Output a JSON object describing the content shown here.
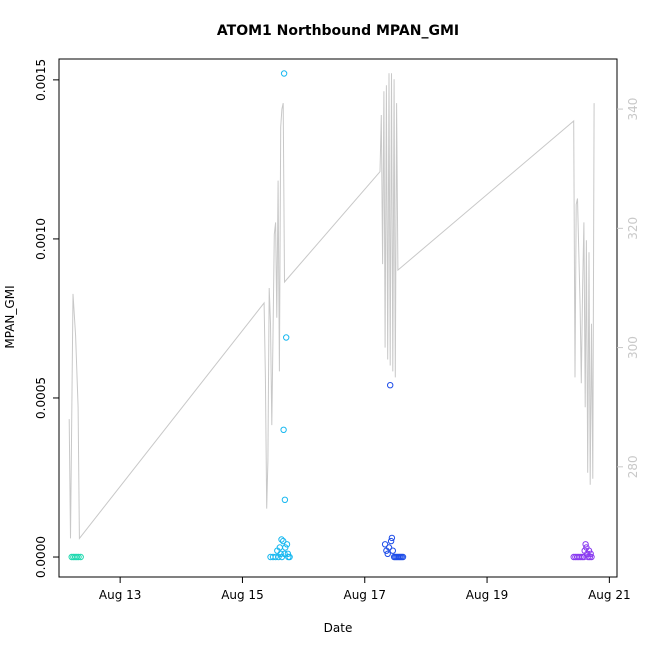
{
  "chart_data": {
    "type": "scatter",
    "title": "ATOM1 Northbound MPAN_GMI",
    "xlabel": "Date",
    "ylabel": "MPAN_GMI",
    "x_ticks": [
      {
        "date": "2023-08-13",
        "label": "Aug 13"
      },
      {
        "date": "2023-08-15",
        "label": "Aug 15"
      },
      {
        "date": "2023-08-17",
        "label": "Aug 17"
      },
      {
        "date": "2023-08-19",
        "label": "Aug 19"
      },
      {
        "date": "2023-08-21",
        "label": "Aug 21"
      }
    ],
    "xlim": [
      "2023-08-12 00:00",
      "2023-08-21 03:00"
    ],
    "y_left_ticks": [
      {
        "value": 0,
        "label": "0.0000"
      },
      {
        "value": 0.0005,
        "label": "0.0005"
      },
      {
        "value": 0.001,
        "label": "0.0010"
      },
      {
        "value": 0.0015,
        "label": "0.0015"
      }
    ],
    "ylim": [
      -6.28e-05,
      0.0015656
    ],
    "y_right_ticks": [
      {
        "value": 280,
        "label": "280"
      },
      {
        "value": 300,
        "label": "300"
      },
      {
        "value": 320,
        "label": "320"
      },
      {
        "value": 340,
        "label": "340"
      }
    ],
    "y_right_lim": [
      261.52,
      348.4
    ],
    "colors": {
      "line": "#c8c8c8",
      "right_axis": "#c8c8c8",
      "axis": "#000000"
    },
    "series": [
      {
        "color": "#20d9b0",
        "points": [
          [
            "2023-08-12 05:00",
            0
          ],
          [
            "2023-08-12 05:40",
            0
          ],
          [
            "2023-08-12 06:20",
            0
          ],
          [
            "2023-08-12 07:00",
            0
          ],
          [
            "2023-08-12 07:40",
            0
          ],
          [
            "2023-08-12 08:30",
            0
          ]
        ]
      },
      {
        "color": "#18b8f0",
        "points": [
          [
            "2023-08-15 11:00",
            0
          ],
          [
            "2023-08-15 12:00",
            0
          ],
          [
            "2023-08-15 13:00",
            0
          ],
          [
            "2023-08-15 13:40",
            2e-05
          ],
          [
            "2023-08-15 14:10",
            0
          ],
          [
            "2023-08-15 14:40",
            3e-05
          ],
          [
            "2023-08-15 15:00",
            1e-05
          ],
          [
            "2023-08-15 15:30",
            0
          ],
          [
            "2023-08-15 16:00",
            5e-05
          ],
          [
            "2023-08-15 16:10",
            0.0004
          ],
          [
            "2023-08-15 16:20",
            0.00152
          ],
          [
            "2023-08-15 16:30",
            1e-05
          ],
          [
            "2023-08-15 16:40",
            0.00018
          ],
          [
            "2023-08-15 16:50",
            3e-05
          ],
          [
            "2023-08-15 17:10",
            0.00069
          ],
          [
            "2023-08-15 17:30",
            4e-05
          ],
          [
            "2023-08-15 18:00",
            0.0
          ],
          [
            "2023-08-15 18:30",
            0
          ],
          [
            "2023-08-15 15:20",
            5.5e-05
          ],
          [
            "2023-08-15 17:50",
            1e-05
          ]
        ]
      },
      {
        "color": "#1e4de8",
        "points": [
          [
            "2023-08-17 08:00",
            4e-05
          ],
          [
            "2023-08-17 08:30",
            2e-05
          ],
          [
            "2023-08-17 09:00",
            1e-05
          ],
          [
            "2023-08-17 09:30",
            3e-05
          ],
          [
            "2023-08-17 10:00",
            0.00054
          ],
          [
            "2023-08-17 10:20",
            5e-05
          ],
          [
            "2023-08-17 10:40",
            6e-05
          ],
          [
            "2023-08-17 11:00",
            2e-05
          ],
          [
            "2023-08-17 11:30",
            0
          ],
          [
            "2023-08-17 12:00",
            0
          ],
          [
            "2023-08-17 12:30",
            0
          ],
          [
            "2023-08-17 13:00",
            0
          ],
          [
            "2023-08-17 13:30",
            0
          ],
          [
            "2023-08-17 14:00",
            0
          ],
          [
            "2023-08-17 14:30",
            0
          ],
          [
            "2023-08-17 15:00",
            0
          ]
        ]
      },
      {
        "color": "#8a3cf0",
        "points": [
          [
            "2023-08-20 10:00",
            0
          ],
          [
            "2023-08-20 10:40",
            0
          ],
          [
            "2023-08-20 11:20",
            0
          ],
          [
            "2023-08-20 12:00",
            0
          ],
          [
            "2023-08-20 12:40",
            0
          ],
          [
            "2023-08-20 13:20",
            0
          ],
          [
            "2023-08-20 14:00",
            0
          ],
          [
            "2023-08-20 14:20",
            2e-05
          ],
          [
            "2023-08-20 14:40",
            4e-05
          ],
          [
            "2023-08-20 15:00",
            3e-05
          ],
          [
            "2023-08-20 15:20",
            1e-05
          ],
          [
            "2023-08-20 15:40",
            0
          ],
          [
            "2023-08-20 16:00",
            2e-05
          ],
          [
            "2023-08-20 16:20",
            0
          ],
          [
            "2023-08-20 16:40",
            1e-05
          ],
          [
            "2023-08-20 17:00",
            0
          ]
        ]
      }
    ],
    "line_series": {
      "axis": "right",
      "points": [
        [
          "2023-08-12 04:00",
          288
        ],
        [
          "2023-08-12 04:30",
          268
        ],
        [
          "2023-08-12 05:30",
          309
        ],
        [
          "2023-08-12 06:30",
          302
        ],
        [
          "2023-08-12 07:30",
          290
        ],
        [
          "2023-08-12 08:00",
          268
        ],
        [
          "2023-08-15 08:30",
          307.5
        ],
        [
          "2023-08-15 09:00",
          295
        ],
        [
          "2023-08-15 09:30",
          273
        ],
        [
          "2023-08-15 10:00",
          281
        ],
        [
          "2023-08-15 10:30",
          310
        ],
        [
          "2023-08-15 11:00",
          304
        ],
        [
          "2023-08-15 11:30",
          287
        ],
        [
          "2023-08-15 12:00",
          302
        ],
        [
          "2023-08-15 12:30",
          319
        ],
        [
          "2023-08-15 13:00",
          321
        ],
        [
          "2023-08-15 13:30",
          305
        ],
        [
          "2023-08-15 14:00",
          328
        ],
        [
          "2023-08-15 14:30",
          296
        ],
        [
          "2023-08-15 15:00",
          337
        ],
        [
          "2023-08-15 15:30",
          340
        ],
        [
          "2023-08-15 16:00",
          341
        ],
        [
          "2023-08-15 16:30",
          311
        ],
        [
          "2023-08-17 06:00",
          329.5
        ],
        [
          "2023-08-17 06:30",
          339
        ],
        [
          "2023-08-17 07:00",
          314
        ],
        [
          "2023-08-17 07:30",
          343
        ],
        [
          "2023-08-17 08:00",
          300
        ],
        [
          "2023-08-17 08:30",
          344
        ],
        [
          "2023-08-17 09:00",
          298
        ],
        [
          "2023-08-17 09:30",
          346
        ],
        [
          "2023-08-17 10:00",
          297
        ],
        [
          "2023-08-17 10:30",
          346
        ],
        [
          "2023-08-17 11:00",
          296
        ],
        [
          "2023-08-17 11:30",
          345
        ],
        [
          "2023-08-17 12:00",
          295
        ],
        [
          "2023-08-17 12:30",
          341
        ],
        [
          "2023-08-17 13:00",
          313
        ],
        [
          "2023-08-20 10:00",
          338
        ],
        [
          "2023-08-20 10:30",
          295
        ],
        [
          "2023-08-20 11:00",
          324
        ],
        [
          "2023-08-20 11:30",
          325
        ],
        [
          "2023-08-20 12:00",
          316
        ],
        [
          "2023-08-20 12:30",
          307
        ],
        [
          "2023-08-20 13:00",
          294
        ],
        [
          "2023-08-20 13:30",
          310
        ],
        [
          "2023-08-20 14:00",
          321
        ],
        [
          "2023-08-20 14:30",
          290
        ],
        [
          "2023-08-20 15:00",
          318
        ],
        [
          "2023-08-20 15:30",
          279
        ],
        [
          "2023-08-20 16:00",
          316
        ],
        [
          "2023-08-20 16:30",
          277
        ],
        [
          "2023-08-20 17:00",
          304
        ],
        [
          "2023-08-20 17:30",
          278
        ],
        [
          "2023-08-20 18:00",
          341
        ]
      ]
    }
  }
}
